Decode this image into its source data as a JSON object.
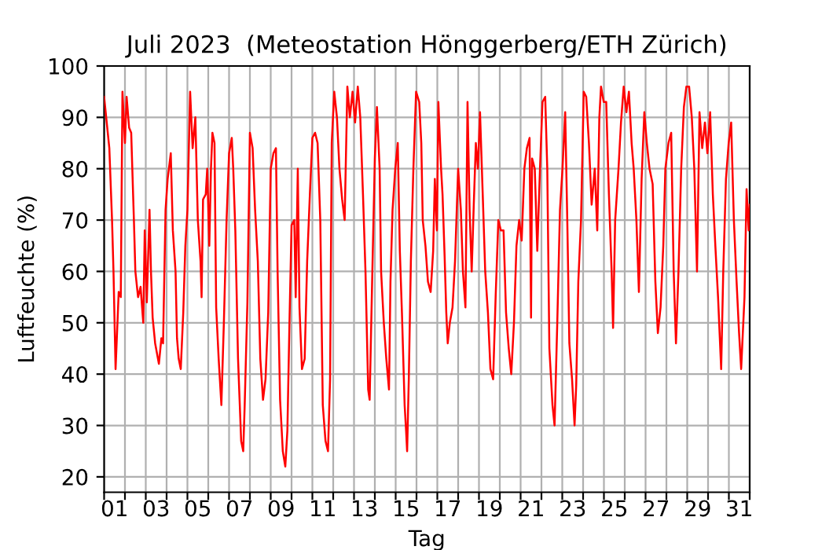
{
  "chart_data": {
    "type": "line",
    "title": "Juli 2023  (Meteostation Hönggerberg/ETH Zürich)",
    "xlabel": "Tag",
    "ylabel": "Luftfeuchte (%)",
    "xlim": [
      1,
      32
    ],
    "ylim": [
      17,
      100
    ],
    "yticks": [
      20,
      30,
      40,
      50,
      60,
      70,
      80,
      90,
      100
    ],
    "xticks": [
      {
        "value": 1,
        "label": null
      },
      {
        "value": 2,
        "label": null
      },
      {
        "value": 3,
        "label": null
      },
      {
        "value": 4,
        "label": null
      },
      {
        "value": 5,
        "label": null
      },
      {
        "value": 6,
        "label": null
      },
      {
        "value": 7,
        "label": null
      },
      {
        "value": 8,
        "label": null
      },
      {
        "value": 9,
        "label": null
      },
      {
        "value": 10,
        "label": null
      },
      {
        "value": 11,
        "label": null
      },
      {
        "value": 12,
        "label": null
      },
      {
        "value": 13,
        "label": null
      },
      {
        "value": 14,
        "label": null
      },
      {
        "value": 15,
        "label": null
      },
      {
        "value": 16,
        "label": null
      },
      {
        "value": 17,
        "label": null
      },
      {
        "value": 18,
        "label": null
      },
      {
        "value": 19,
        "label": null
      },
      {
        "value": 20,
        "label": null
      },
      {
        "value": 21,
        "label": null
      },
      {
        "value": 22,
        "label": null
      },
      {
        "value": 23,
        "label": null
      },
      {
        "value": 24,
        "label": null
      },
      {
        "value": 25,
        "label": null
      },
      {
        "value": 26,
        "label": null
      },
      {
        "value": 27,
        "label": null
      },
      {
        "value": 28,
        "label": null
      },
      {
        "value": 29,
        "label": null
      },
      {
        "value": 30,
        "label": null
      },
      {
        "value": 31,
        "label": null
      },
      {
        "value": 32,
        "label": null
      },
      {
        "value": 1.5,
        "label": "01"
      },
      {
        "value": 3.5,
        "label": "03"
      },
      {
        "value": 5.5,
        "label": "05"
      },
      {
        "value": 7.5,
        "label": "07"
      },
      {
        "value": 9.5,
        "label": "09"
      },
      {
        "value": 11.5,
        "label": "11"
      },
      {
        "value": 13.5,
        "label": "13"
      },
      {
        "value": 15.5,
        "label": "15"
      },
      {
        "value": 17.5,
        "label": "17"
      },
      {
        "value": 19.5,
        "label": "19"
      },
      {
        "value": 21.5,
        "label": "21"
      },
      {
        "value": 23.5,
        "label": "23"
      },
      {
        "value": 25.5,
        "label": "25"
      },
      {
        "value": 27.5,
        "label": "27"
      },
      {
        "value": 29.5,
        "label": "29"
      },
      {
        "value": 31.5,
        "label": "31"
      }
    ],
    "grid": true,
    "series": [
      {
        "color": "#ff0000",
        "x": [
          1.0,
          1.05,
          1.25,
          1.38,
          1.45,
          1.55,
          1.63,
          1.7,
          1.8,
          1.88,
          2.0,
          2.08,
          2.2,
          2.3,
          2.43,
          2.5,
          2.63,
          2.75,
          2.88,
          2.95,
          3.05,
          3.18,
          3.25,
          3.33,
          3.45,
          3.63,
          3.75,
          3.83,
          3.95,
          4.05,
          4.2,
          4.3,
          4.43,
          4.5,
          4.58,
          4.68,
          4.8,
          4.9,
          5.0,
          5.13,
          5.25,
          5.38,
          5.5,
          5.63,
          5.68,
          5.75,
          5.88,
          5.95,
          6.05,
          6.13,
          6.2,
          6.3,
          6.38,
          6.5,
          6.63,
          6.75,
          6.88,
          7.0,
          7.13,
          7.2,
          7.3,
          7.43,
          7.58,
          7.68,
          7.75,
          7.88,
          8.0,
          8.13,
          8.25,
          8.38,
          8.5,
          8.63,
          8.75,
          8.88,
          9.0,
          9.13,
          9.25,
          9.33,
          9.45,
          9.58,
          9.7,
          9.8,
          9.9,
          10.0,
          10.13,
          10.2,
          10.3,
          10.38,
          10.5,
          10.63,
          10.75,
          10.88,
          11.0,
          11.13,
          11.25,
          11.38,
          11.5,
          11.63,
          11.75,
          11.85,
          11.93,
          12.05,
          12.18,
          12.3,
          12.43,
          12.55,
          12.68,
          12.8,
          12.93,
          13.05,
          13.18,
          13.3,
          13.43,
          13.55,
          13.68,
          13.75,
          13.88,
          14.0,
          14.1,
          14.23,
          14.3,
          14.43,
          14.55,
          14.68,
          14.75,
          14.85,
          14.98,
          15.1,
          15.2,
          15.3,
          15.43,
          15.5,
          15.55,
          15.63,
          15.73,
          15.85,
          15.98,
          16.13,
          16.23,
          16.3,
          16.43,
          16.55,
          16.68,
          16.8,
          16.88,
          16.98,
          17.05,
          17.18,
          17.25,
          17.35,
          17.43,
          17.5,
          17.6,
          17.73,
          17.85,
          18.0,
          18.13,
          18.23,
          18.35,
          18.45,
          18.55,
          18.65,
          18.75,
          18.85,
          18.95,
          19.05,
          19.18,
          19.3,
          19.43,
          19.55,
          19.68,
          19.8,
          19.93,
          20.05,
          20.18,
          20.3,
          20.43,
          20.55,
          20.68,
          20.8,
          20.93,
          21.05,
          21.18,
          21.3,
          21.43,
          21.5,
          21.55,
          21.68,
          21.8,
          21.93,
          22.05,
          22.18,
          22.28,
          22.38,
          22.53,
          22.63,
          22.76,
          22.89,
          23.01,
          23.14,
          23.24,
          23.34,
          23.47,
          23.59,
          23.67,
          23.77,
          23.9,
          24.03,
          24.15,
          24.28,
          24.41,
          24.56,
          24.68,
          24.78,
          24.86,
          24.99,
          25.11,
          25.24,
          25.37,
          25.44,
          25.54,
          25.7,
          25.82,
          25.95,
          26.08,
          26.2,
          26.33,
          26.43,
          26.56,
          26.68,
          26.81,
          26.94,
          27.06,
          27.19,
          27.34,
          27.47,
          27.59,
          27.72,
          27.85,
          27.95,
          28.1,
          28.23,
          28.35,
          28.46,
          28.58,
          28.71,
          28.84,
          28.96,
          29.09,
          29.22,
          29.34,
          29.47,
          29.59,
          29.72,
          29.85,
          29.97,
          30.1,
          30.23,
          30.35,
          30.48,
          30.63,
          30.73,
          30.86,
          30.99,
          31.11,
          31.24,
          31.37,
          31.49,
          31.59,
          31.75,
          31.85,
          31.95,
          32.0
        ],
        "values": [
          94,
          92,
          84,
          70,
          60,
          41,
          49,
          56,
          55,
          95,
          85,
          94,
          88,
          87,
          70,
          60,
          55,
          57,
          50,
          68,
          54,
          72,
          60,
          51,
          46,
          42,
          47,
          46,
          72,
          78,
          83,
          68,
          60,
          47,
          43,
          41,
          52,
          65,
          72,
          95,
          84,
          90,
          70,
          62,
          55,
          74,
          75,
          80,
          65,
          80,
          87,
          85,
          53,
          43,
          34,
          50,
          70,
          83,
          86,
          80,
          68,
          43,
          27,
          25,
          34,
          54,
          87,
          84,
          72,
          62,
          43,
          35,
          39,
          52,
          80,
          83,
          84,
          60,
          35,
          25,
          22,
          29,
          50,
          69,
          70,
          55,
          80,
          53,
          41,
          43,
          62,
          75,
          86,
          87,
          85,
          70,
          34,
          27,
          25,
          39,
          85,
          95,
          90,
          80,
          74,
          70,
          96,
          90,
          95,
          89,
          96,
          90,
          75,
          60,
          37,
          35,
          60,
          82,
          92,
          80,
          60,
          50,
          43,
          37,
          58,
          72,
          80,
          85,
          64,
          52,
          34,
          29,
          25,
          39,
          62,
          80,
          95,
          93,
          85,
          70,
          65,
          58,
          56,
          64,
          78,
          68,
          93,
          80,
          75,
          63,
          52,
          46,
          50,
          53,
          62,
          80,
          72,
          60,
          53,
          93,
          72,
          60,
          73,
          85,
          80,
          91,
          75,
          60,
          52,
          41,
          39,
          55,
          70,
          68,
          68,
          52,
          45,
          40,
          50,
          65,
          70,
          66,
          80,
          84,
          86,
          51,
          82,
          80,
          64,
          80,
          93,
          94,
          80,
          45,
          34,
          30,
          50,
          72,
          80,
          91,
          70,
          46,
          39,
          30,
          38,
          58,
          70,
          95,
          94,
          85,
          73,
          80,
          68,
          90,
          96,
          93,
          93,
          75,
          60,
          49,
          70,
          80,
          89,
          96,
          91,
          95,
          85,
          80,
          70,
          56,
          78,
          91,
          85,
          80,
          77,
          58,
          48,
          53,
          65,
          80,
          85,
          87,
          60,
          46,
          60,
          80,
          92,
          96,
          96,
          90,
          80,
          60,
          91,
          84,
          89,
          83,
          91,
          75,
          65,
          55,
          41,
          60,
          78,
          85,
          89,
          70,
          58,
          48,
          41,
          55,
          76,
          68,
          73
        ]
      }
    ]
  }
}
